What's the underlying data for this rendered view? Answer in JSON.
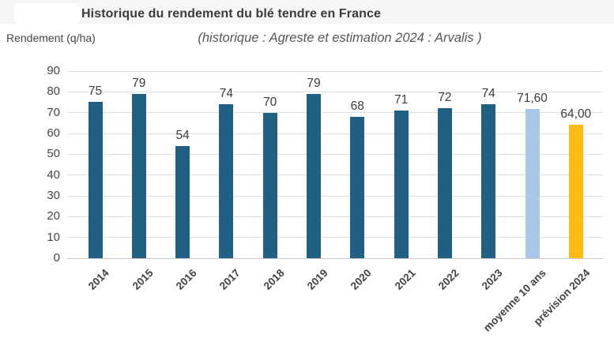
{
  "header": {
    "title": "Historique du rendement du blé tendre en France",
    "subtitle": "(historique : Agreste et estimation 2024 : Arvalis )",
    "y_axis_title": "Rendement (q/ha)"
  },
  "chart_data": {
    "type": "bar",
    "title": "Historique du rendement du blé tendre en France",
    "subtitle": "(historique : Agreste et estimation 2024 : Arvalis )",
    "ylabel": "Rendement (q/ha)",
    "xlabel": "",
    "categories": [
      "2014",
      "2015",
      "2016",
      "2017",
      "2018",
      "2019",
      "2020",
      "2021",
      "2022",
      "2023",
      "moyenne 10 ans",
      "prévision 2024"
    ],
    "values": [
      75,
      79,
      54,
      74,
      70,
      79,
      68,
      71,
      72,
      74,
      71.6,
      64
    ],
    "value_labels": [
      "75",
      "79",
      "54",
      "74",
      "70",
      "79",
      "68",
      "71",
      "72",
      "74",
      "71,60",
      "64,00"
    ],
    "bar_roles": [
      "historical",
      "historical",
      "historical",
      "historical",
      "historical",
      "historical",
      "historical",
      "historical",
      "historical",
      "historical",
      "average",
      "forecast"
    ],
    "ylim": [
      0,
      90
    ],
    "yticks": [
      0,
      10,
      20,
      30,
      40,
      50,
      60,
      70,
      80,
      90
    ],
    "grid": "horizontal",
    "legend_position": "none",
    "colors": {
      "historical": "#1f6083",
      "average": "#a9c7e6",
      "forecast": "#fdba12"
    }
  }
}
